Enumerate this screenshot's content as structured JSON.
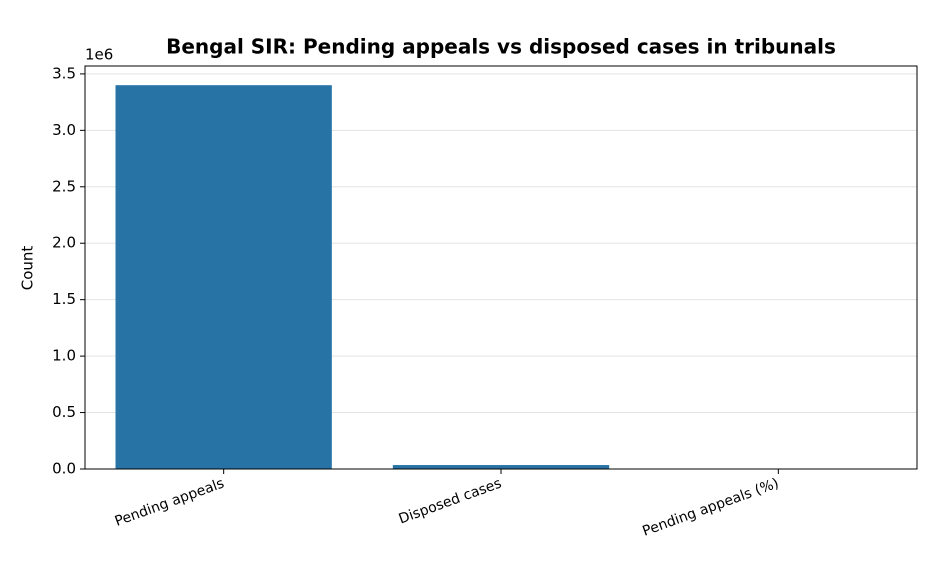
{
  "chart_data": {
    "type": "bar",
    "title": "Bengal SIR: Pending appeals vs disposed cases in tribunals",
    "y_label": "Count",
    "y_offset_label": "1e6",
    "categories": [
      "Pending appeals",
      "Disposed cases",
      "Pending appeals (%)"
    ],
    "values": [
      3400000,
      35000,
      99
    ],
    "color": "#2873a6",
    "ylim": [
      0,
      3570000
    ],
    "yticks": [
      {
        "value": 0,
        "label": "0.0"
      },
      {
        "value": 500000,
        "label": "0.5"
      },
      {
        "value": 1000000,
        "label": "1.0"
      },
      {
        "value": 1500000,
        "label": "1.5"
      },
      {
        "value": 2000000,
        "label": "2.0"
      },
      {
        "value": 2500000,
        "label": "2.5"
      },
      {
        "value": 3000000,
        "label": "3.0"
      },
      {
        "value": 3500000,
        "label": "3.5"
      }
    ],
    "grid": true
  }
}
